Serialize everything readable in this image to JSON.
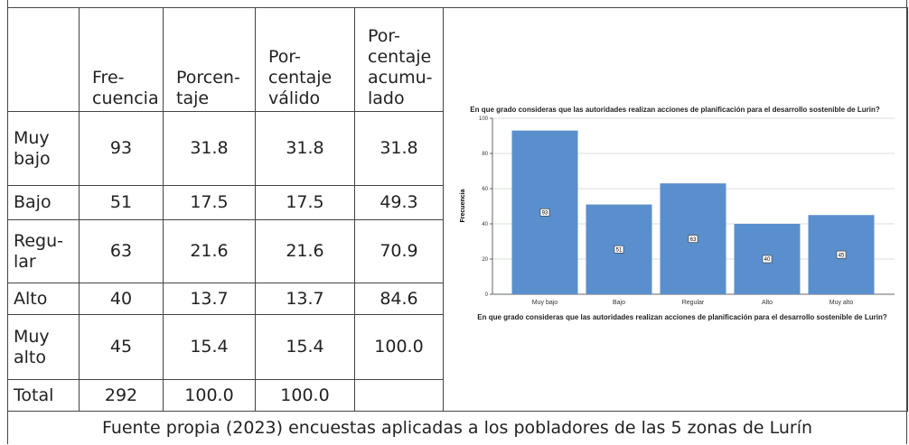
{
  "table": {
    "header": [
      "",
      "Fre-\ncuencia",
      "Porcen-\ntaje",
      "Por-\ncentaje\nválido",
      "Por-\ncentaje\nacumu-\nlado"
    ],
    "rows": [
      [
        "Muy\nbajo",
        "93",
        "31.8",
        "31.8",
        "31.8"
      ],
      [
        "Bajo",
        "51",
        "17.5",
        "17.5",
        "49.3"
      ],
      [
        "Regu-\nlar",
        "63",
        "21.6",
        "21.6",
        "70.9"
      ],
      [
        "Alto",
        "40",
        "13.7",
        "13.7",
        "84.6"
      ],
      [
        "Muy\nalto",
        "45",
        "15.4",
        "15.4",
        "100.0"
      ],
      [
        "Total",
        "292",
        "100.0",
        "100.0",
        ""
      ]
    ]
  },
  "chart": {
    "type": "bar",
    "title": "En que grado consideras que las autoridades realizan acciones de planificación para el desarrollo sostenible de Lurin?",
    "x_label": "En que grado consideras que las autoridades realizan acciones de planificación para el desarrollo sostenible de Lurin?",
    "y_label": "Frecuencia",
    "categories": [
      "Muy bajo",
      "Bajo",
      "Regular",
      "Alto",
      "Muy alto"
    ],
    "values": [
      93,
      51,
      63,
      40,
      45
    ],
    "color": "#5a8fcd",
    "ylim": [
      0,
      100
    ],
    "yticks": [
      0,
      20,
      40,
      60,
      80,
      100
    ],
    "grid": true
  },
  "footer": "Fuente propia (2023)   encuestas aplicadas a los pobladores de las 5 zonas de Lurín"
}
